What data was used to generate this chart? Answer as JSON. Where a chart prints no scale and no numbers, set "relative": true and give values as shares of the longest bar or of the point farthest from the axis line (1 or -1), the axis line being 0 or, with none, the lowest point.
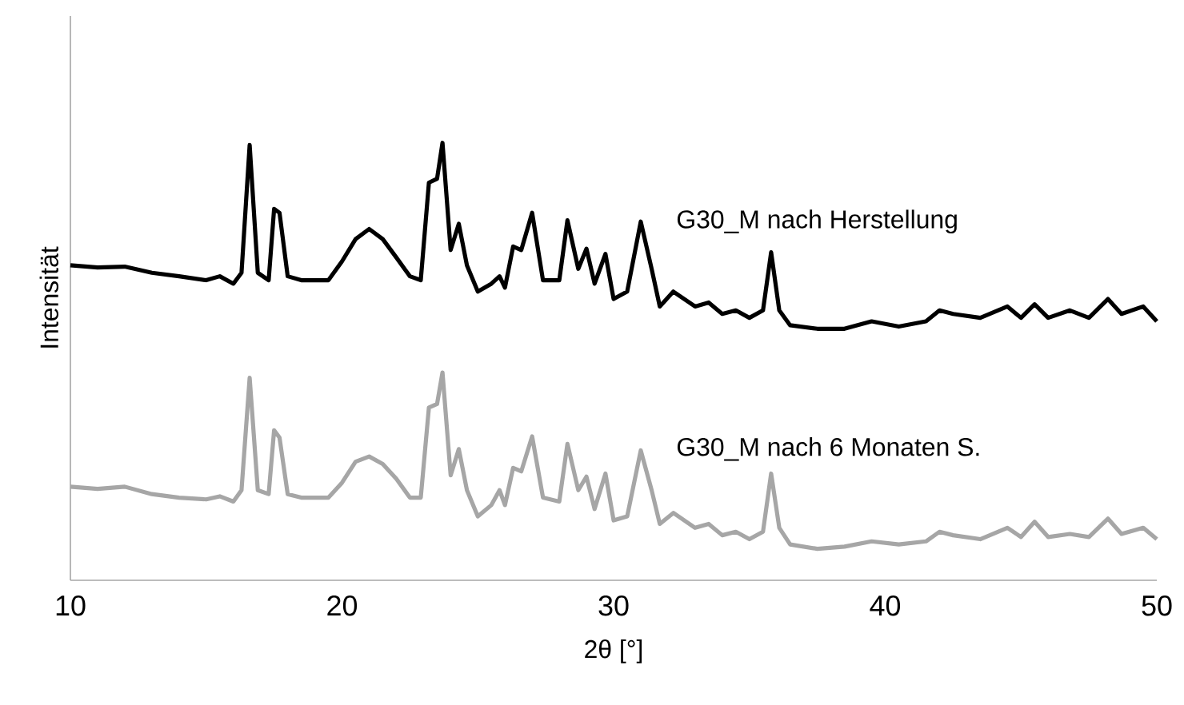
{
  "chart_data": {
    "type": "line",
    "relative": true,
    "xlabel": "2θ [°]",
    "ylabel": "Intensität",
    "xlim": [
      10,
      50
    ],
    "xticks": [
      10,
      20,
      30,
      40,
      50
    ],
    "tick_labels": "x",
    "marker": "none",
    "line_style": "solid",
    "x": [
      10,
      11,
      12,
      13,
      14,
      15,
      15.5,
      16,
      16.3,
      16.6,
      16.9,
      17.3,
      17.5,
      17.7,
      18,
      18.5,
      19.5,
      20,
      20.5,
      21,
      21.5,
      22,
      22.5,
      22.9,
      23.2,
      23.5,
      23.7,
      24,
      24.3,
      24.6,
      25,
      25.5,
      25.8,
      26,
      26.3,
      26.6,
      27,
      27.4,
      28,
      28.3,
      28.7,
      29,
      29.3,
      29.7,
      30,
      30.5,
      31,
      31.4,
      31.7,
      32.2,
      33,
      33.5,
      34,
      34.5,
      35,
      35.5,
      35.8,
      36.1,
      36.5,
      37.5,
      38.5,
      39.5,
      40.5,
      41.5,
      42,
      42.5,
      43.5,
      44.5,
      45,
      45.5,
      46,
      46.8,
      47.5,
      48.2,
      48.7,
      49.5,
      50
    ],
    "series": [
      {
        "name": "G30_M nach Herstellung",
        "color": "#000000",
        "values": [
          0.72,
          0.715,
          0.717,
          0.703,
          0.695,
          0.686,
          0.695,
          0.678,
          0.703,
          0.995,
          0.703,
          0.686,
          0.849,
          0.84,
          0.695,
          0.686,
          0.686,
          0.729,
          0.78,
          0.803,
          0.78,
          0.738,
          0.695,
          0.686,
          0.909,
          0.918,
          1.0,
          0.755,
          0.815,
          0.72,
          0.66,
          0.678,
          0.695,
          0.669,
          0.763,
          0.755,
          0.84,
          0.686,
          0.686,
          0.823,
          0.712,
          0.758,
          0.678,
          0.746,
          0.643,
          0.66,
          0.82,
          0.712,
          0.626,
          0.66,
          0.626,
          0.635,
          0.609,
          0.617,
          0.6,
          0.617,
          0.75,
          0.617,
          0.583,
          0.575,
          0.575,
          0.592,
          0.58,
          0.592,
          0.617,
          0.609,
          0.6,
          0.626,
          0.6,
          0.631,
          0.6,
          0.617,
          0.6,
          0.643,
          0.609,
          0.626,
          0.592
        ]
      },
      {
        "name": "G30_M nach 6 Monaten S.",
        "color": "#a6a6a6",
        "values": [
          0.214,
          0.209,
          0.214,
          0.197,
          0.189,
          0.185,
          0.192,
          0.18,
          0.206,
          0.463,
          0.206,
          0.197,
          0.343,
          0.326,
          0.197,
          0.189,
          0.189,
          0.223,
          0.271,
          0.283,
          0.266,
          0.232,
          0.189,
          0.189,
          0.395,
          0.403,
          0.475,
          0.24,
          0.3,
          0.206,
          0.146,
          0.172,
          0.206,
          0.172,
          0.257,
          0.249,
          0.329,
          0.189,
          0.18,
          0.312,
          0.206,
          0.237,
          0.163,
          0.244,
          0.137,
          0.146,
          0.297,
          0.206,
          0.129,
          0.154,
          0.12,
          0.129,
          0.103,
          0.111,
          0.094,
          0.111,
          0.244,
          0.12,
          0.082,
          0.072,
          0.077,
          0.089,
          0.082,
          0.089,
          0.111,
          0.103,
          0.094,
          0.12,
          0.099,
          0.134,
          0.099,
          0.106,
          0.099,
          0.141,
          0.106,
          0.12,
          0.094
        ]
      }
    ]
  }
}
